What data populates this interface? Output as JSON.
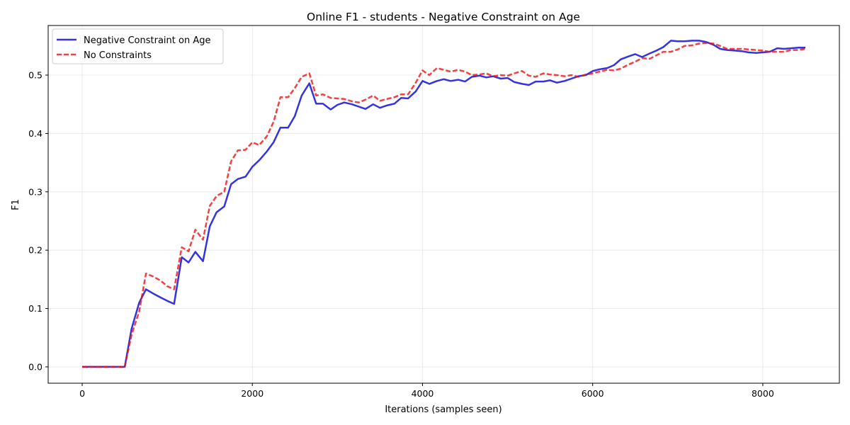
{
  "chart_data": {
    "type": "line",
    "title": "Online F1 - students - Negative Constraint on Age",
    "xlabel": "Iterations (samples seen)",
    "ylabel": "F1",
    "xlim": [
      -400,
      8900
    ],
    "ylim": [
      -0.028,
      0.585
    ],
    "xticks": [
      0,
      2000,
      4000,
      6000,
      8000
    ],
    "xtick_labels": [
      "0",
      "2000",
      "4000",
      "6000",
      "8000"
    ],
    "yticks": [
      0.0,
      0.1,
      0.2,
      0.3,
      0.4,
      0.5
    ],
    "ytick_labels": [
      "0.0",
      "0.1",
      "0.2",
      "0.3",
      "0.4",
      "0.5"
    ],
    "grid": true,
    "legend_position": "top-left",
    "series": [
      {
        "name": "Negative Constraint on Age",
        "color": "#0000dd",
        "style": "solid",
        "x": [
          0,
          500,
          580,
          670,
          750,
          830,
          920,
          1000,
          1080,
          1170,
          1250,
          1330,
          1420,
          1500,
          1580,
          1670,
          1750,
          1830,
          1920,
          2000,
          2080,
          2170,
          2250,
          2330,
          2420,
          2500,
          2580,
          2670,
          2750,
          2830,
          2920,
          3000,
          3080,
          3170,
          3250,
          3330,
          3420,
          3500,
          3580,
          3670,
          3750,
          3830,
          3920,
          4000,
          4080,
          4170,
          4250,
          4330,
          4420,
          4500,
          4580,
          4670,
          4750,
          4830,
          4920,
          5000,
          5080,
          5170,
          5250,
          5330,
          5420,
          5500,
          5580,
          5670,
          5750,
          5830,
          5920,
          6000,
          6080,
          6170,
          6250,
          6330,
          6420,
          6500,
          6580,
          6670,
          6750,
          6830,
          6920,
          7000,
          7080,
          7170,
          7250,
          7330,
          7420,
          7500,
          7580,
          7670,
          7750,
          7830,
          7920,
          8000,
          8080,
          8170,
          8250,
          8330,
          8420,
          8500
        ],
        "y": [
          0.0,
          0.0,
          0.065,
          0.11,
          0.133,
          0.126,
          0.119,
          0.113,
          0.108,
          0.188,
          0.179,
          0.197,
          0.181,
          0.241,
          0.265,
          0.275,
          0.313,
          0.322,
          0.326,
          0.343,
          0.354,
          0.369,
          0.385,
          0.41,
          0.41,
          0.43,
          0.465,
          0.486,
          0.451,
          0.451,
          0.441,
          0.449,
          0.453,
          0.45,
          0.446,
          0.442,
          0.45,
          0.444,
          0.448,
          0.451,
          0.461,
          0.46,
          0.472,
          0.49,
          0.485,
          0.49,
          0.493,
          0.49,
          0.492,
          0.489,
          0.497,
          0.499,
          0.496,
          0.498,
          0.494,
          0.495,
          0.488,
          0.485,
          0.483,
          0.489,
          0.489,
          0.491,
          0.487,
          0.49,
          0.494,
          0.498,
          0.5,
          0.507,
          0.51,
          0.512,
          0.517,
          0.527,
          0.532,
          0.536,
          0.531,
          0.537,
          0.542,
          0.548,
          0.559,
          0.558,
          0.558,
          0.559,
          0.559,
          0.557,
          0.552,
          0.545,
          0.543,
          0.542,
          0.541,
          0.539,
          0.538,
          0.539,
          0.54,
          0.546,
          0.545,
          0.546,
          0.547,
          0.547
        ]
      },
      {
        "name": "No Constraints",
        "color": "#ee1111",
        "style": "dashed",
        "x": [
          0,
          500,
          580,
          670,
          750,
          830,
          920,
          1000,
          1080,
          1170,
          1250,
          1330,
          1420,
          1500,
          1580,
          1670,
          1750,
          1830,
          1920,
          2000,
          2080,
          2170,
          2250,
          2330,
          2420,
          2500,
          2580,
          2670,
          2750,
          2830,
          2920,
          3000,
          3080,
          3170,
          3250,
          3330,
          3420,
          3500,
          3580,
          3670,
          3750,
          3830,
          3920,
          4000,
          4080,
          4170,
          4250,
          4330,
          4420,
          4500,
          4580,
          4670,
          4750,
          4830,
          4920,
          5000,
          5080,
          5170,
          5250,
          5330,
          5420,
          5500,
          5580,
          5670,
          5750,
          5830,
          5920,
          6000,
          6080,
          6170,
          6250,
          6330,
          6420,
          6500,
          6580,
          6670,
          6750,
          6830,
          6920,
          7000,
          7080,
          7170,
          7250,
          7330,
          7420,
          7500,
          7580,
          7670,
          7750,
          7830,
          7920,
          8000,
          8080,
          8170,
          8250,
          8330,
          8420,
          8500
        ],
        "y": [
          0.0,
          0.0,
          0.055,
          0.095,
          0.16,
          0.155,
          0.148,
          0.138,
          0.133,
          0.205,
          0.198,
          0.235,
          0.218,
          0.276,
          0.293,
          0.3,
          0.352,
          0.371,
          0.372,
          0.385,
          0.38,
          0.395,
          0.42,
          0.462,
          0.462,
          0.478,
          0.497,
          0.503,
          0.465,
          0.467,
          0.461,
          0.46,
          0.459,
          0.455,
          0.453,
          0.458,
          0.465,
          0.456,
          0.459,
          0.462,
          0.467,
          0.467,
          0.487,
          0.508,
          0.5,
          0.512,
          0.509,
          0.506,
          0.509,
          0.506,
          0.5,
          0.501,
          0.503,
          0.498,
          0.5,
          0.499,
          0.503,
          0.507,
          0.499,
          0.497,
          0.503,
          0.501,
          0.5,
          0.498,
          0.5,
          0.497,
          0.501,
          0.503,
          0.506,
          0.509,
          0.508,
          0.511,
          0.518,
          0.523,
          0.529,
          0.528,
          0.534,
          0.54,
          0.54,
          0.544,
          0.55,
          0.551,
          0.554,
          0.555,
          0.554,
          0.55,
          0.545,
          0.545,
          0.545,
          0.544,
          0.543,
          0.542,
          0.54,
          0.54,
          0.54,
          0.543,
          0.543,
          0.545
        ]
      }
    ]
  }
}
